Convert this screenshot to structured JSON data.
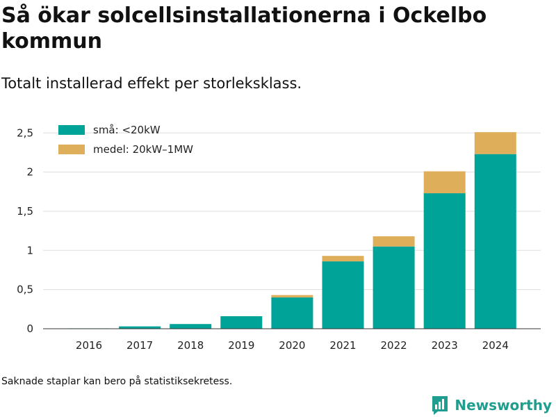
{
  "title": "Så ökar solcellsinstallationerna i Ockelbo kommun",
  "subtitle": "Totalt installerad effekt per storleksklass.",
  "footnote": "Saknade staplar kan bero på statistiksekretess.",
  "brand": {
    "name": "Newsworthy",
    "icon": "newsworthy-logo-icon",
    "color": "#1f9e8f"
  },
  "chart_data": {
    "type": "bar",
    "stacked": true,
    "categories": [
      "2016",
      "2017",
      "2018",
      "2019",
      "2020",
      "2021",
      "2022",
      "2023",
      "2024"
    ],
    "series": [
      {
        "name": "små: <20kW",
        "color": "#00a398",
        "values": [
          0.005,
          0.03,
          0.06,
          0.16,
          0.4,
          0.86,
          1.05,
          1.73,
          2.23
        ]
      },
      {
        "name": "medel: 20kW–1MW",
        "color": "#deae5a",
        "values": [
          0,
          0,
          0,
          0,
          0.03,
          0.07,
          0.13,
          0.28,
          0.28
        ]
      }
    ],
    "yticks": [
      0,
      0.5,
      1,
      1.5,
      2,
      2.5
    ],
    "ytick_labels": [
      "0",
      "0,5",
      "1",
      "1,5",
      "2",
      "2,5"
    ],
    "ylim": [
      0,
      2.6
    ],
    "grid": true,
    "legend": "top-left",
    "xlabel": "",
    "ylabel": ""
  }
}
